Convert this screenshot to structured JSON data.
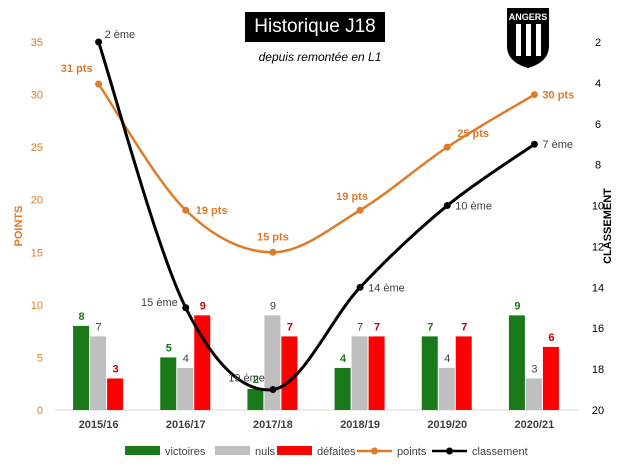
{
  "chart_data": {
    "type": "bar",
    "title": "Historique J18",
    "subtitle": "depuis remontée en L1",
    "categories": [
      "2015/16",
      "2016/17",
      "2017/18",
      "2018/19",
      "2019/20",
      "2020/21"
    ],
    "series": [
      {
        "name": "victoires",
        "type": "bar",
        "axis": "left",
        "color": "#1a7a1a",
        "label_color": "#1a7a1a",
        "values": [
          8,
          5,
          2,
          4,
          7,
          9
        ]
      },
      {
        "name": "nuls",
        "type": "bar",
        "axis": "left",
        "color": "#bfbfbf",
        "label_color": "#404040",
        "values": [
          7,
          4,
          9,
          7,
          4,
          3
        ]
      },
      {
        "name": "défaites",
        "type": "bar",
        "axis": "left",
        "color": "#ff0000",
        "label_color": "#c00000",
        "values": [
          3,
          9,
          7,
          7,
          7,
          6
        ]
      },
      {
        "name": "points",
        "type": "line",
        "axis": "left",
        "color": "#e07b28",
        "values": [
          31,
          19,
          15,
          19,
          25,
          30
        ],
        "labels": [
          "31 pts",
          "19 pts",
          "15 pts",
          "19 pts",
          "25 pts",
          "30 pts"
        ]
      },
      {
        "name": "classement",
        "type": "line",
        "axis": "right",
        "color": "#000000",
        "values": [
          2,
          15,
          19,
          14,
          10,
          7
        ],
        "labels": [
          "2 ème",
          "15 ème",
          "19 ème",
          "14 ème",
          "10 ème",
          "7 ème"
        ]
      }
    ],
    "ylabel": "POINTS",
    "ylabel_color": "#e07b28",
    "ylim": [
      0,
      35
    ],
    "yticks": [
      "0",
      "5",
      "10",
      "15",
      "20",
      "25",
      "30",
      "35"
    ],
    "y2label": "CLASSEMENT",
    "y2lim": [
      2,
      20
    ],
    "y2_inverted": true,
    "y2ticks": [
      "2",
      "4",
      "6",
      "8",
      "10",
      "12",
      "14",
      "16",
      "18",
      "20"
    ],
    "grid": false,
    "legend_position": "bottom"
  },
  "logo": {
    "text": "ANGERS"
  }
}
